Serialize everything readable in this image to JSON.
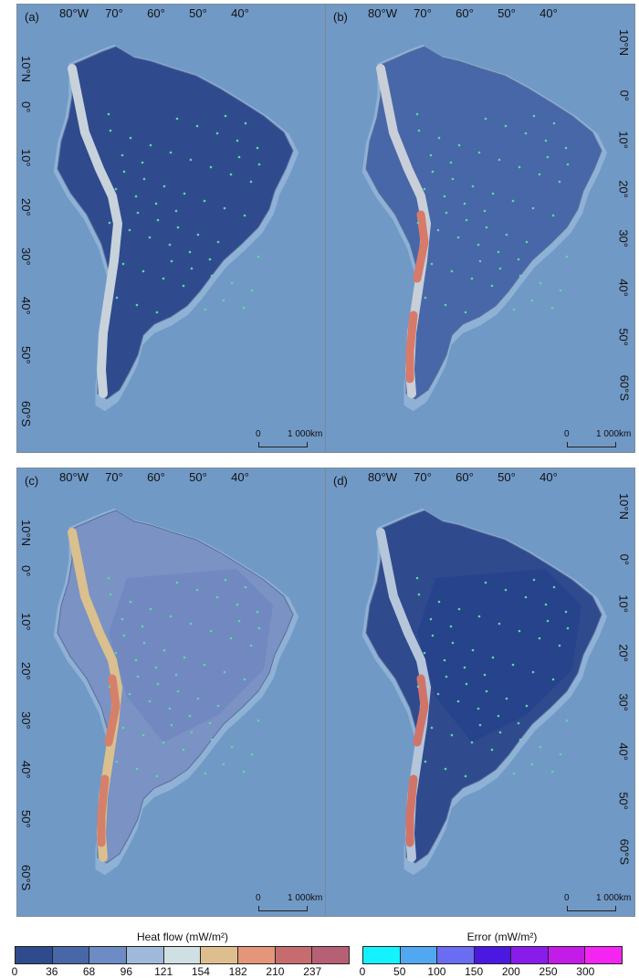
{
  "panels": [
    {
      "label": "(a)"
    },
    {
      "label": "(b)"
    },
    {
      "label": "(c)"
    },
    {
      "label": "(d)"
    }
  ],
  "lon_labels": [
    "80°W",
    "70°",
    "60°",
    "50°",
    "40°"
  ],
  "lat_labels": [
    "10°N",
    "0°",
    "10°",
    "20°",
    "30°",
    "40°",
    "50°",
    "60°S"
  ],
  "scale": {
    "zero": "0",
    "distance": "1 000km"
  },
  "heat_legend": {
    "title": "Heat flow (mW/m²)",
    "ticks": [
      "0",
      "36",
      "68",
      "96",
      "121",
      "154",
      "182",
      "210",
      "237"
    ],
    "colors": [
      "#2f4b8e",
      "#4767a8",
      "#6d8bc4",
      "#9fb9db",
      "#cfdfe2",
      "#ddbf8f",
      "#e4957a",
      "#c76c6e",
      "#b65f75"
    ]
  },
  "error_legend": {
    "title": "Error (mW/m²)",
    "ticks": [
      "0",
      "50",
      "100",
      "150",
      "200",
      "250",
      "300"
    ],
    "colors": [
      "#15f2ff",
      "#52a8f0",
      "#6a6cf2",
      "#4a18e0",
      "#8a1cea",
      "#c31be8",
      "#f425f0"
    ]
  }
}
